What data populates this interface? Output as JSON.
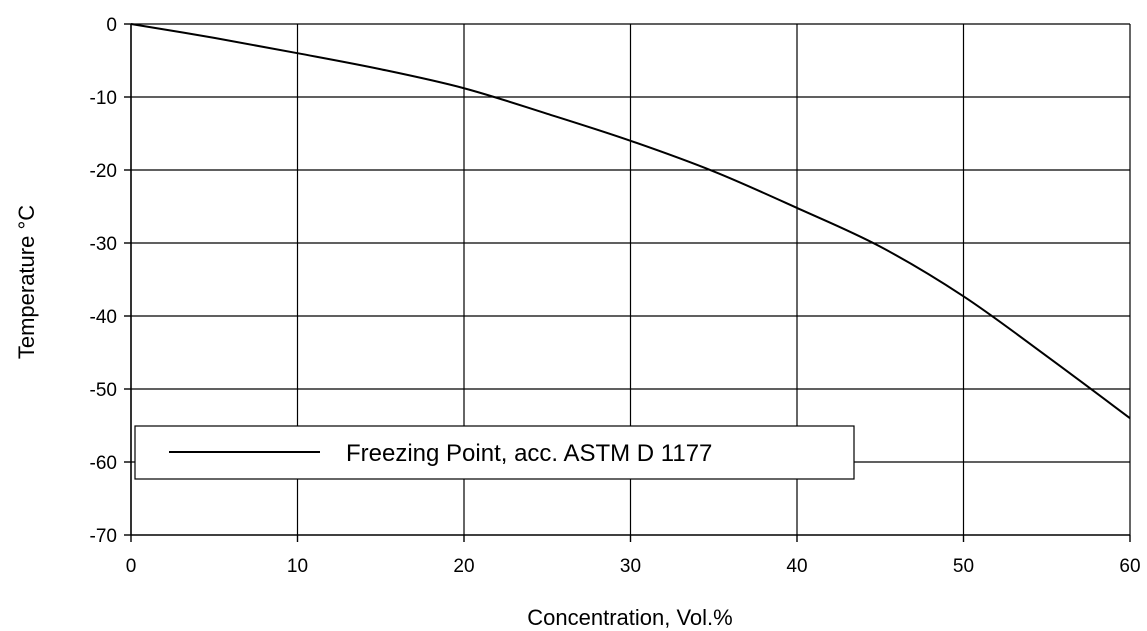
{
  "chart_data": {
    "type": "line",
    "xlabel": "Concentration, Vol.%",
    "ylabel": "Temperature °C",
    "xlim": [
      0,
      60
    ],
    "ylim": [
      -70,
      0
    ],
    "x_ticks": [
      0,
      10,
      20,
      30,
      40,
      50,
      60
    ],
    "y_ticks": [
      0,
      -10,
      -20,
      -30,
      -40,
      -50,
      -60,
      -70
    ],
    "grid": true,
    "legend_position": "lower-left",
    "series": [
      {
        "name": "Freezing Point, acc. ASTM D 1177",
        "color": "#000000",
        "x": [
          0,
          5,
          10,
          15,
          20,
          25,
          30,
          35,
          40,
          45,
          50,
          55,
          60
        ],
        "y": [
          0,
          -1.9,
          -4.0,
          -6.2,
          -8.8,
          -12.3,
          -16.0,
          -20.2,
          -25.2,
          -30.5,
          -37.3,
          -45.5,
          -54.0
        ]
      }
    ]
  }
}
